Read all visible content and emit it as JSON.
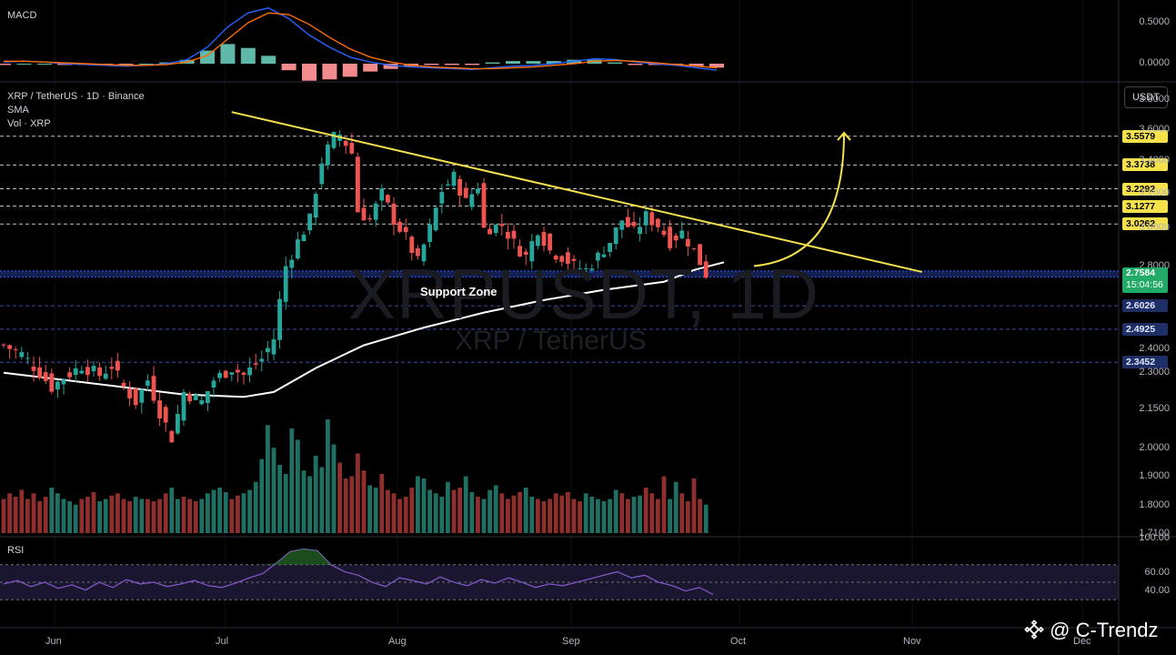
{
  "header": {
    "symbol_line": "XRP / TetherUS · 1D · Binance",
    "indicator_sma": "SMA",
    "indicator_vol": "Vol · XRP",
    "currency_button": "USDT"
  },
  "watermark": {
    "symbol": "XRPUSDT, 1D",
    "name": "XRP / TetherUS"
  },
  "annotation": {
    "support_label": "Support Zone"
  },
  "brand": {
    "text": "@ C-Trendz",
    "icon": "binance-diamond-icon"
  },
  "colors": {
    "background": "#000000",
    "up": "#26a69a",
    "down": "#ef5350",
    "trendline": "#f5e14b",
    "sma": "#ffffff",
    "support": "#2962ff",
    "rsi": "#7e57c2",
    "macd": "#2962ff",
    "signal": "#ff6d00"
  },
  "chart_data": [
    {
      "type": "candlestick",
      "title": "XRP / TetherUS · 1D · Binance",
      "x_ticks": [
        "Jun",
        "Jul",
        "Aug",
        "Sep",
        "Oct",
        "Nov",
        "Dec"
      ],
      "y_ticks": [
        "3.8000",
        "3.6000",
        "3.4000",
        "3.2000",
        "3.0000",
        "2.8000",
        "2.4000",
        "2.3000",
        "2.1500",
        "2.0000",
        "1.9000",
        "1.8000",
        "1.7100"
      ],
      "ylim": [
        1.7,
        3.9
      ],
      "y_scale": "log",
      "current_price": "2.7584",
      "countdown": "15:04:56",
      "price_levels": [
        {
          "label": "3.5579",
          "value": 3.5579,
          "color": "yellow"
        },
        {
          "label": "3.3738",
          "value": 3.3738,
          "color": "yellow"
        },
        {
          "label": "3.2292",
          "value": 3.2292,
          "color": "yellow"
        },
        {
          "label": "3.1277",
          "value": 3.1277,
          "color": "yellow"
        },
        {
          "label": "3.0262",
          "value": 3.0262,
          "color": "yellow"
        },
        {
          "label": "2.6026",
          "value": 2.6026,
          "color": "blue"
        },
        {
          "label": "2.4925",
          "value": 2.4925,
          "color": "blue"
        },
        {
          "label": "2.3452",
          "value": 2.3452,
          "color": "blue"
        }
      ],
      "support_zone": [
        2.745,
        2.775
      ],
      "trendline": {
        "start": {
          "day": 38,
          "price": 3.72
        },
        "end": {
          "day": 153,
          "price": 2.77
        }
      },
      "projection": {
        "from": {
          "day": 125,
          "price": 2.8
        },
        "to": {
          "day": 140,
          "price": 3.58
        }
      },
      "sma_points": [
        [
          0,
          2.3
        ],
        [
          10,
          2.27
        ],
        [
          20,
          2.24
        ],
        [
          30,
          2.21
        ],
        [
          40,
          2.2
        ],
        [
          45,
          2.22
        ],
        [
          52,
          2.32
        ],
        [
          60,
          2.42
        ],
        [
          70,
          2.5
        ],
        [
          80,
          2.57
        ],
        [
          90,
          2.63
        ],
        [
          100,
          2.68
        ],
        [
          110,
          2.72
        ],
        [
          115,
          2.78
        ],
        [
          120,
          2.82
        ]
      ],
      "close_points": [
        [
          0,
          2.42
        ],
        [
          3,
          2.38
        ],
        [
          6,
          2.3
        ],
        [
          8,
          2.24
        ],
        [
          10,
          2.28
        ],
        [
          13,
          2.33
        ],
        [
          16,
          2.29
        ],
        [
          18,
          2.33
        ],
        [
          20,
          2.24
        ],
        [
          22,
          2.18
        ],
        [
          24,
          2.27
        ],
        [
          26,
          2.14
        ],
        [
          28,
          2.04
        ],
        [
          30,
          2.22
        ],
        [
          33,
          2.18
        ],
        [
          35,
          2.27
        ],
        [
          38,
          2.32
        ],
        [
          40,
          2.29
        ],
        [
          43,
          2.36
        ],
        [
          45,
          2.45
        ],
        [
          47,
          2.8
        ],
        [
          49,
          2.93
        ],
        [
          51,
          3.05
        ],
        [
          53,
          3.4
        ],
        [
          55,
          3.55
        ],
        [
          56,
          3.57
        ],
        [
          58,
          3.45
        ],
        [
          59,
          3.1
        ],
        [
          61,
          3.05
        ],
        [
          63,
          3.2
        ],
        [
          65,
          3.05
        ],
        [
          67,
          2.95
        ],
        [
          69,
          2.82
        ],
        [
          71,
          3.0
        ],
        [
          73,
          3.22
        ],
        [
          75,
          3.3
        ],
        [
          77,
          3.15
        ],
        [
          79,
          3.25
        ],
        [
          80,
          3.0
        ],
        [
          83,
          3.02
        ],
        [
          85,
          2.92
        ],
        [
          87,
          2.85
        ],
        [
          89,
          3.0
        ],
        [
          91,
          2.88
        ],
        [
          93,
          2.85
        ],
        [
          95,
          2.8
        ],
        [
          97,
          2.78
        ],
        [
          99,
          2.85
        ],
        [
          101,
          2.93
        ],
        [
          103,
          3.05
        ],
        [
          105,
          2.98
        ],
        [
          107,
          3.07
        ],
        [
          109,
          3.02
        ],
        [
          111,
          2.93
        ],
        [
          113,
          2.98
        ],
        [
          115,
          2.88
        ],
        [
          117,
          2.76
        ]
      ],
      "volume_relative": [
        0.3,
        0.35,
        0.32,
        0.38,
        0.3,
        0.35,
        0.28,
        0.32,
        0.4,
        0.35,
        0.3,
        0.28,
        0.25,
        0.3,
        0.32,
        0.36,
        0.28,
        0.3,
        0.33,
        0.35,
        0.3,
        0.28,
        0.32,
        0.3,
        0.3,
        0.28,
        0.3,
        0.35,
        0.4,
        0.3,
        0.32,
        0.3,
        0.28,
        0.3,
        0.35,
        0.38,
        0.4,
        0.36,
        0.3,
        0.33,
        0.35,
        0.38,
        0.45,
        0.65,
        0.95,
        0.75,
        0.6,
        0.52,
        0.92,
        0.82,
        0.55,
        0.5,
        0.68,
        0.58,
        1.0,
        0.78,
        0.62,
        0.48,
        0.5,
        0.7,
        0.55,
        0.42,
        0.4,
        0.52,
        0.38,
        0.35,
        0.3,
        0.32,
        0.4,
        0.5,
        0.48,
        0.38,
        0.35,
        0.32,
        0.45,
        0.38,
        0.4,
        0.5,
        0.36,
        0.32,
        0.3,
        0.38,
        0.42,
        0.35,
        0.3,
        0.33,
        0.36,
        0.4,
        0.32,
        0.3,
        0.28,
        0.3,
        0.35,
        0.33,
        0.36,
        0.3,
        0.28,
        0.35,
        0.32,
        0.3,
        0.28,
        0.3,
        0.38,
        0.35,
        0.3,
        0.32,
        0.33,
        0.4,
        0.35,
        0.3,
        0.5,
        0.3,
        0.45,
        0.35,
        0.28,
        0.48,
        0.3,
        0.25
      ]
    },
    {
      "type": "line",
      "title": "MACD",
      "y_ticks": [
        "0.5000",
        "0.0000"
      ],
      "series": [
        {
          "name": "MACD",
          "values": [
            0.02,
            0.03,
            0.02,
            0.0,
            -0.01,
            -0.02,
            -0.03,
            -0.02,
            0.0,
            0.05,
            0.2,
            0.45,
            0.62,
            0.68,
            0.55,
            0.35,
            0.2,
            0.08,
            0.02,
            -0.02,
            -0.04,
            -0.05,
            -0.06,
            -0.07,
            -0.05,
            -0.03,
            -0.02,
            0.0,
            0.03,
            0.06,
            0.05,
            0.02,
            0.0,
            -0.02,
            -0.05,
            -0.08
          ]
        },
        {
          "name": "Signal",
          "values": [
            0.03,
            0.03,
            0.02,
            0.01,
            0.0,
            -0.01,
            -0.02,
            -0.02,
            -0.01,
            0.02,
            0.1,
            0.3,
            0.5,
            0.62,
            0.6,
            0.48,
            0.32,
            0.18,
            0.08,
            0.02,
            -0.02,
            -0.04,
            -0.05,
            -0.06,
            -0.06,
            -0.05,
            -0.04,
            -0.02,
            0.0,
            0.03,
            0.04,
            0.03,
            0.01,
            -0.01,
            -0.03,
            -0.05
          ]
        }
      ]
    },
    {
      "type": "line",
      "title": "RSI",
      "y_ticks": [
        "100.00",
        "60.00",
        "40.00"
      ],
      "levels": [
        70,
        50,
        30
      ],
      "series": [
        {
          "name": "RSI",
          "values": [
            48,
            52,
            45,
            50,
            43,
            47,
            41,
            50,
            44,
            53,
            48,
            50,
            45,
            48,
            52,
            46,
            44,
            49,
            55,
            60,
            72,
            85,
            88,
            86,
            70,
            62,
            58,
            50,
            45,
            55,
            52,
            48,
            56,
            50,
            46,
            53,
            49,
            55,
            50,
            44,
            48,
            46,
            50,
            54,
            58,
            62,
            55,
            58,
            50,
            46,
            40,
            44,
            36
          ]
        }
      ]
    }
  ]
}
